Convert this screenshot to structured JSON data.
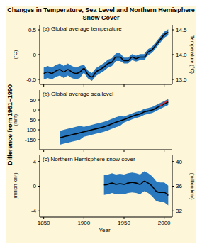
{
  "title": "Changes in Temperature, Sea Level and Northern Hemisphere Snow Cover",
  "ylabel": "Difference from 1961–1990",
  "chart_data": [
    {
      "type": "line",
      "title": "(a) Global average temperature",
      "ylabel": "(°C)",
      "y2label": "Temperature (°C)",
      "tick_labels": "y",
      "x": [
        1850,
        1855,
        1860,
        1865,
        1870,
        1875,
        1880,
        1885,
        1890,
        1895,
        1900,
        1905,
        1910,
        1915,
        1920,
        1925,
        1930,
        1935,
        1940,
        1945,
        1950,
        1955,
        1960,
        1965,
        1970,
        1975,
        1980,
        1985,
        1990,
        1995,
        2000,
        2005
      ],
      "xlim": [
        1845,
        2010
      ],
      "xticks": [
        1850,
        1900,
        1950,
        2000
      ],
      "ylim": [
        -0.6,
        0.6
      ],
      "yticks": [
        -0.5,
        0,
        0.5
      ],
      "y2lim": [
        13.4,
        14.6
      ],
      "y2ticks": [
        13.5,
        {
          "value": 14,
          "label": "14.0"
        },
        14.5
      ],
      "series": [
        {
          "color": "#000000",
          "values": [
            -0.38,
            -0.35,
            -0.38,
            -0.33,
            -0.3,
            -0.35,
            -0.3,
            -0.35,
            -0.38,
            -0.35,
            -0.28,
            -0.4,
            -0.45,
            -0.35,
            -0.3,
            -0.25,
            -0.18,
            -0.15,
            -0.05,
            -0.05,
            -0.12,
            -0.12,
            -0.05,
            -0.08,
            -0.05,
            -0.05,
            0.05,
            0.1,
            0.2,
            0.3,
            0.4,
            0.45
          ],
          "lower": [
            -0.5,
            -0.47,
            -0.5,
            -0.45,
            -0.42,
            -0.47,
            -0.42,
            -0.47,
            -0.5,
            -0.47,
            -0.36,
            -0.48,
            -0.53,
            -0.43,
            -0.38,
            -0.33,
            -0.26,
            -0.23,
            -0.13,
            -0.13,
            -0.18,
            -0.18,
            -0.11,
            -0.14,
            -0.11,
            -0.11,
            -0.01,
            0.04,
            0.14,
            0.24,
            0.34,
            0.39
          ],
          "upper": [
            -0.26,
            -0.23,
            -0.26,
            -0.21,
            -0.18,
            -0.23,
            -0.18,
            -0.23,
            -0.26,
            -0.23,
            -0.2,
            -0.32,
            -0.37,
            -0.27,
            -0.22,
            -0.17,
            -0.1,
            -0.07,
            0.03,
            0.03,
            -0.06,
            -0.06,
            0.01,
            -0.02,
            0.01,
            0.01,
            0.11,
            0.16,
            0.26,
            0.36,
            0.46,
            0.51
          ]
        }
      ]
    },
    {
      "type": "line",
      "title": "(b) Global average sea level",
      "ylabel": "(mm)",
      "tick_labels": "y",
      "x": [
        1850,
        1855,
        1860,
        1865,
        1870,
        1875,
        1880,
        1885,
        1890,
        1895,
        1900,
        1905,
        1910,
        1915,
        1920,
        1925,
        1930,
        1935,
        1940,
        1945,
        1950,
        1955,
        1960,
        1965,
        1970,
        1975,
        1980,
        1985,
        1990,
        1995,
        2000,
        2005
      ],
      "xlim": [
        1845,
        2010
      ],
      "xticks": [
        1850,
        1900,
        1950,
        2000
      ],
      "ylim": [
        -200,
        100
      ],
      "yticks": [
        -150,
        -100,
        -50,
        0,
        50
      ],
      "series": [
        {
          "color": "#000000",
          "values": [
            null,
            null,
            null,
            null,
            -140,
            -135,
            -130,
            -125,
            -120,
            -115,
            -110,
            -105,
            -100,
            -95,
            -90,
            -85,
            -78,
            -70,
            -62,
            -55,
            -48,
            -40,
            -32,
            -25,
            -20,
            -10,
            -5,
            0,
            10,
            20,
            30,
            40
          ],
          "lower": [
            null,
            null,
            null,
            null,
            -175,
            -170,
            -165,
            -160,
            -155,
            -150,
            -135,
            -130,
            -125,
            -120,
            -115,
            -110,
            -103,
            -95,
            -87,
            -80,
            -63,
            -55,
            -47,
            -40,
            -35,
            -25,
            -20,
            -15,
            -5,
            5,
            15,
            25
          ],
          "upper": [
            null,
            null,
            null,
            null,
            -105,
            -100,
            -95,
            -90,
            -85,
            -80,
            -85,
            -80,
            -75,
            -70,
            -65,
            -60,
            -53,
            -45,
            -37,
            -30,
            -33,
            -25,
            -17,
            -10,
            -5,
            5,
            10,
            15,
            25,
            35,
            45,
            55
          ]
        },
        {
          "color": "#e8262b",
          "values": [
            null,
            null,
            null,
            null,
            null,
            null,
            null,
            null,
            null,
            null,
            null,
            null,
            null,
            null,
            null,
            null,
            null,
            null,
            null,
            null,
            null,
            null,
            null,
            null,
            null,
            null,
            null,
            null,
            null,
            22,
            35,
            48
          ]
        }
      ]
    },
    {
      "type": "line",
      "title": "(c) Northern Hemisphere snow cover",
      "ylabel": "(million km²)",
      "y2label": "(million km²)",
      "xlabel": "Year",
      "x": [
        1850,
        1855,
        1860,
        1865,
        1870,
        1875,
        1880,
        1885,
        1890,
        1895,
        1900,
        1905,
        1910,
        1915,
        1920,
        1925,
        1930,
        1935,
        1940,
        1945,
        1950,
        1955,
        1960,
        1965,
        1970,
        1975,
        1980,
        1985,
        1990,
        1995,
        2000,
        2005
      ],
      "xlim": [
        1845,
        2010
      ],
      "xticks": [
        1850,
        1900,
        1950,
        2000
      ],
      "ylim": [
        -5,
        5
      ],
      "yticks": [
        -4,
        0,
        4
      ],
      "y2lim": [
        31,
        41
      ],
      "y2ticks": [
        32,
        36,
        40
      ],
      "series": [
        {
          "color": "#000000",
          "values": [
            null,
            null,
            null,
            null,
            null,
            null,
            null,
            null,
            null,
            null,
            null,
            null,
            null,
            null,
            null,
            0.2,
            0.3,
            0.5,
            0.3,
            0.4,
            0.3,
            0.5,
            0.6,
            0.5,
            0.3,
            0.8,
            0.5,
            0.0,
            -0.8,
            -1.0,
            -1.0,
            -1.5
          ],
          "lower": [
            null,
            null,
            null,
            null,
            null,
            null,
            null,
            null,
            null,
            null,
            null,
            null,
            null,
            null,
            null,
            -1.4,
            -1.3,
            -1.1,
            -1.3,
            -1.2,
            -1.3,
            -1.1,
            -1.0,
            -1.1,
            -1.3,
            -0.8,
            -1.1,
            -1.6,
            -2.4,
            -2.6,
            -2.6,
            -3.1
          ],
          "upper": [
            null,
            null,
            null,
            null,
            null,
            null,
            null,
            null,
            null,
            null,
            null,
            null,
            null,
            null,
            null,
            1.8,
            1.9,
            2.1,
            1.9,
            2.0,
            1.9,
            2.1,
            2.2,
            2.1,
            1.9,
            2.4,
            2.1,
            1.6,
            0.8,
            0.6,
            0.6,
            0.1
          ]
        }
      ]
    }
  ]
}
